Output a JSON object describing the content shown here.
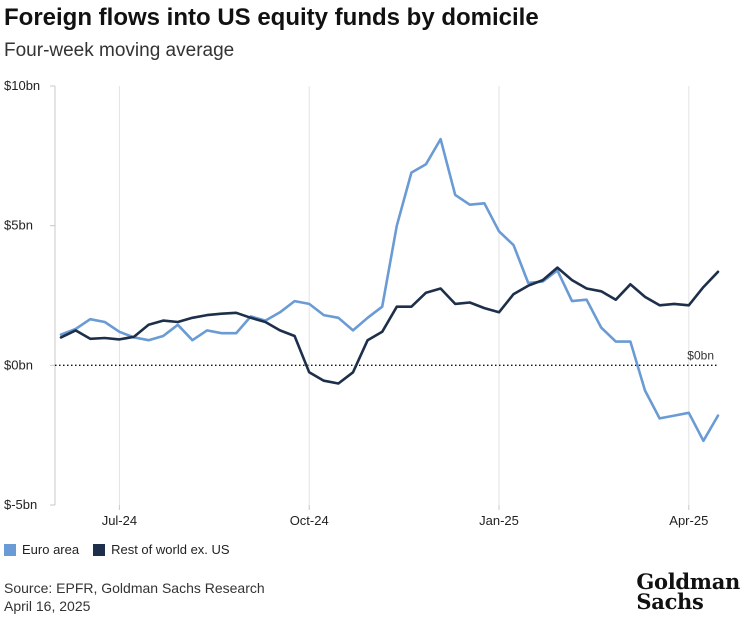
{
  "title": "Foreign flows into US equity funds by domicile",
  "subtitle": "Four-week moving average",
  "source": "Source: EPFR, Goldman Sachs Research",
  "date": "April 16, 2025",
  "logo_text": "Goldman Sachs",
  "chart_data": {
    "type": "line",
    "ylim": [
      -5,
      10
    ],
    "y_ticks": [
      {
        "value": 10,
        "label": "$10bn"
      },
      {
        "value": 5,
        "label": "$5bn"
      },
      {
        "value": 0,
        "label": "$0bn"
      },
      {
        "value": -5,
        "label": "$-5bn"
      }
    ],
    "x_ticks": [
      {
        "index": 4,
        "label": "Jul-24"
      },
      {
        "index": 17,
        "label": "Oct-24"
      },
      {
        "index": 30,
        "label": "Jan-25"
      },
      {
        "index": 43,
        "label": "Apr-25"
      }
    ],
    "zero_label": "$0bn",
    "grid": "vertical",
    "legend_position": "bottom-left",
    "series": [
      {
        "name": "Euro area",
        "color": "#6a9bd4",
        "values": [
          1.1,
          1.3,
          1.65,
          1.55,
          1.2,
          1.0,
          0.9,
          1.05,
          1.45,
          0.9,
          1.25,
          1.15,
          1.15,
          1.75,
          1.6,
          1.9,
          2.3,
          2.2,
          1.8,
          1.7,
          1.25,
          1.7,
          2.1,
          5.0,
          6.9,
          7.2,
          8.1,
          6.1,
          5.75,
          5.8,
          4.8,
          4.3,
          2.95,
          3.0,
          3.4,
          2.3,
          2.35,
          1.35,
          0.85,
          0.85,
          -0.9,
          -1.9,
          -1.8,
          -1.7,
          -2.7,
          -1.8
        ]
      },
      {
        "name": "Rest of world ex. US",
        "color": "#1d2f4a",
        "values": [
          1.0,
          1.25,
          0.95,
          0.98,
          0.93,
          1.02,
          1.45,
          1.6,
          1.55,
          1.7,
          1.8,
          1.85,
          1.88,
          1.7,
          1.55,
          1.25,
          1.05,
          -0.25,
          -0.55,
          -0.65,
          -0.25,
          0.9,
          1.2,
          2.1,
          2.1,
          2.6,
          2.75,
          2.2,
          2.25,
          2.05,
          1.9,
          2.55,
          2.85,
          3.05,
          3.5,
          3.05,
          2.75,
          2.65,
          2.35,
          2.9,
          2.45,
          2.15,
          2.2,
          2.15,
          2.8,
          3.35
        ]
      }
    ]
  }
}
